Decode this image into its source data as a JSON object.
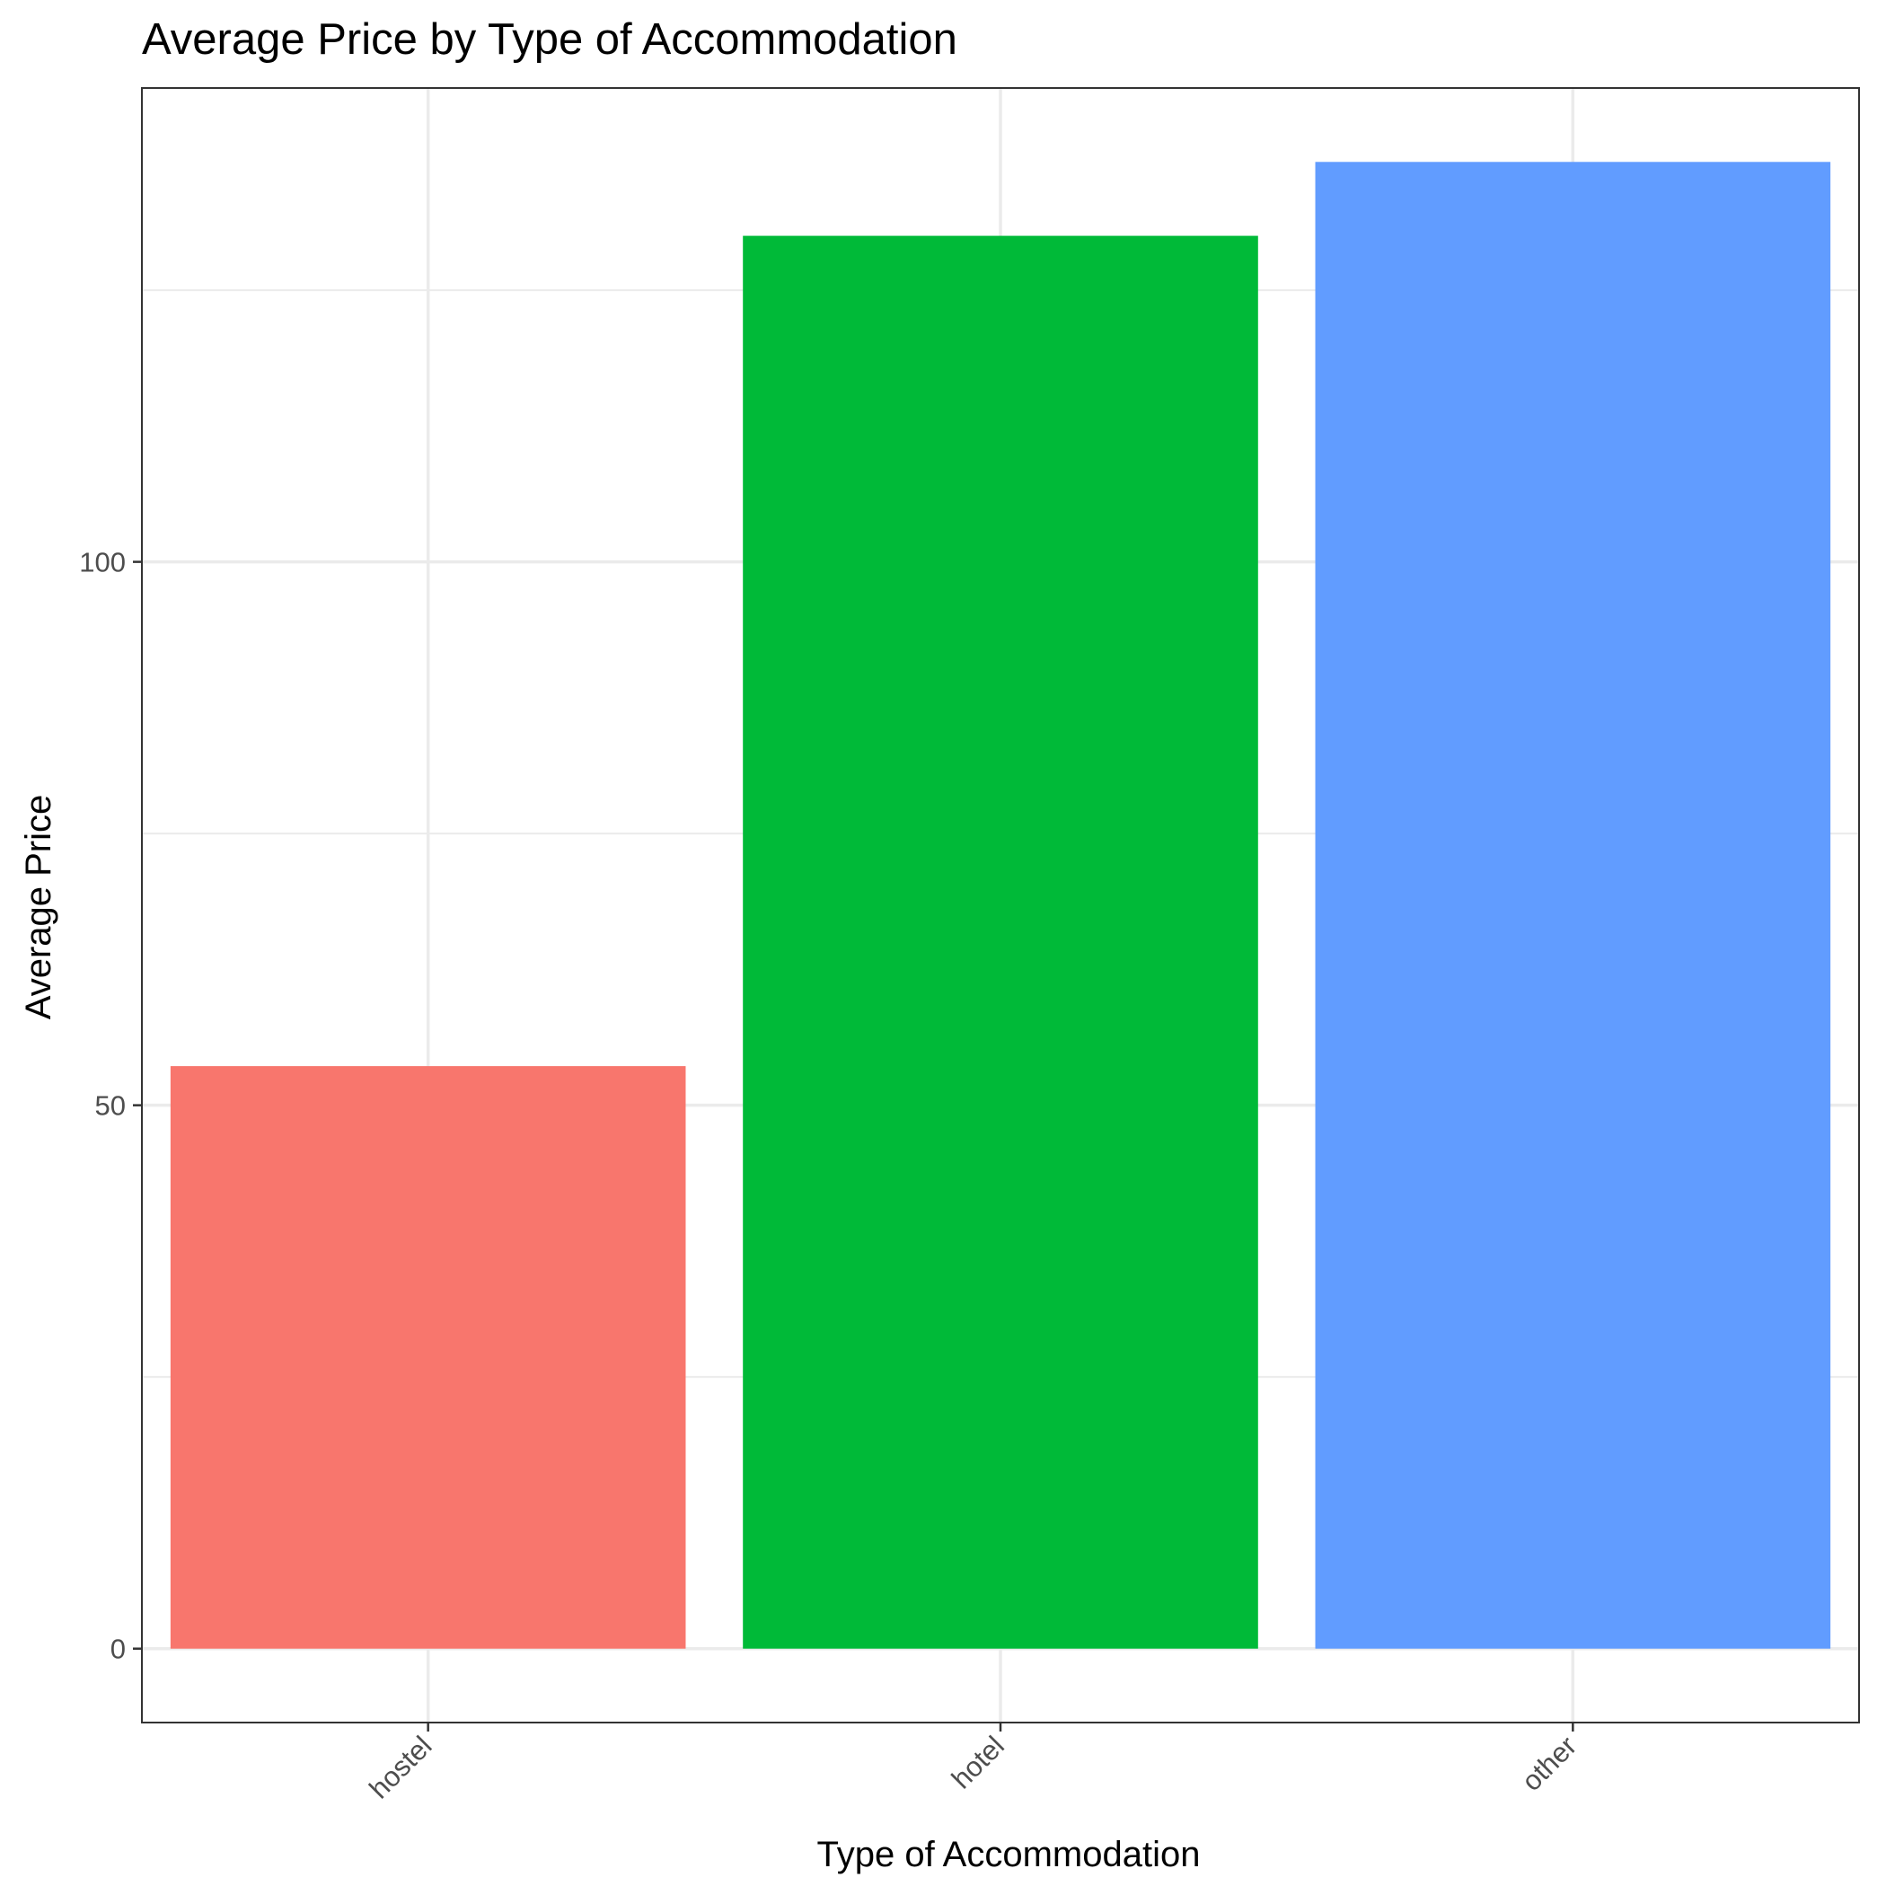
{
  "chart_data": {
    "type": "bar",
    "title": "Average Price by Type of Accommodation",
    "xlabel": "Type of Accommodation",
    "ylabel": "Average Price",
    "categories": [
      "hostel",
      "hotel",
      "other"
    ],
    "values": [
      53.6,
      130,
      136.8
    ],
    "colors": [
      "#F8766D",
      "#00BA38",
      "#619CFF"
    ],
    "ylim": [
      -6.8,
      143.6
    ],
    "y_ticks": [
      0,
      50,
      100
    ],
    "y_tick_labels": [
      "0",
      "50",
      "100"
    ],
    "y_minor_ticks": [
      25,
      75,
      125
    ],
    "grid": true,
    "legend": "none",
    "x_tick_label_rotation": "45 degrees"
  }
}
